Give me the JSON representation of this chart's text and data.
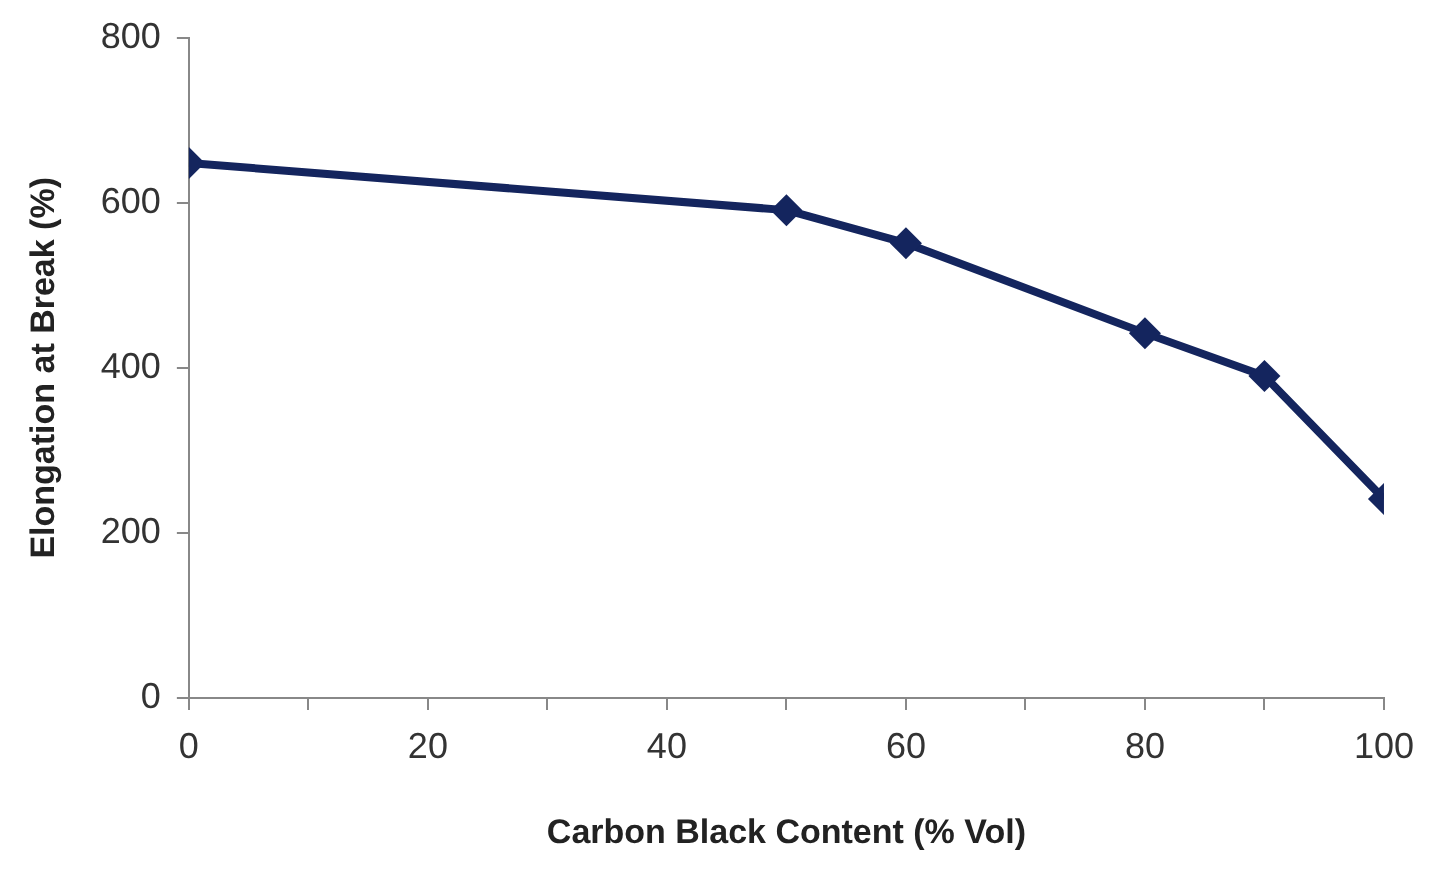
{
  "chart_data": {
    "type": "line",
    "xlabel": "Carbon Black Content (% Vol)",
    "ylabel": "Elongation at Break (%)",
    "x": [
      0,
      50,
      60,
      80,
      90,
      100
    ],
    "series": [
      {
        "color": "#14255e",
        "values": [
          648,
          591,
          551,
          442,
          390,
          241
        ]
      }
    ],
    "xlim": [
      0,
      100
    ],
    "xticks": [
      0,
      {
        "value": 10,
        "label": null
      },
      20,
      {
        "value": 30,
        "label": null
      },
      40,
      {
        "value": 50,
        "label": null
      },
      60,
      {
        "value": 70,
        "label": null
      },
      80,
      {
        "value": 90,
        "label": null
      },
      100
    ],
    "ylim": [
      0,
      800
    ],
    "yticks": [
      0,
      200,
      400,
      600,
      800
    ],
    "marker": "diamond",
    "line_style": "solid",
    "legend": false
  }
}
